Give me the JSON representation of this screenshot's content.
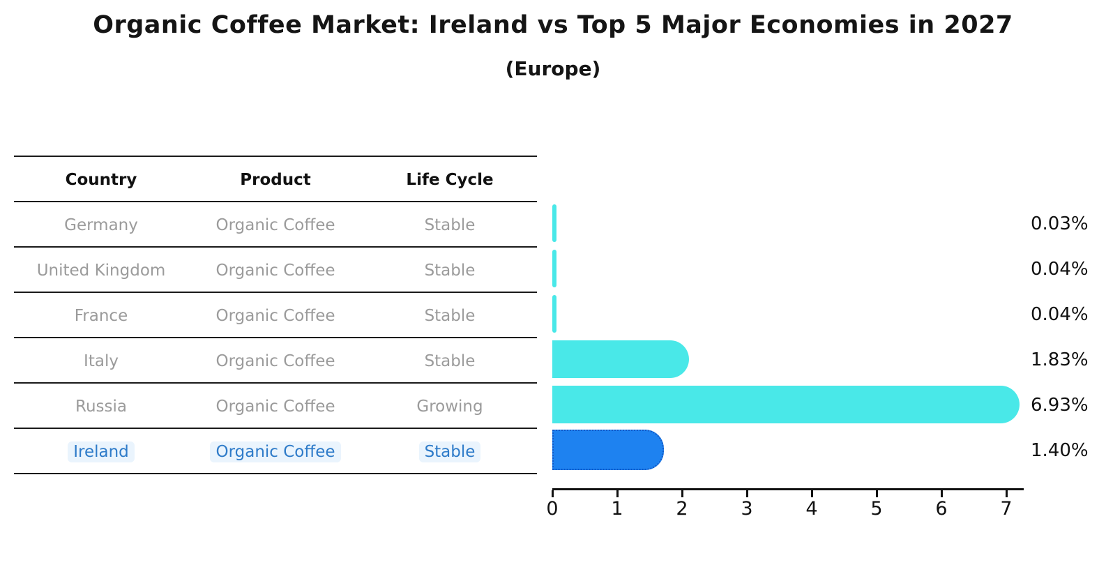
{
  "title": "Organic Coffee Market: Ireland vs Top 5 Major Economies in 2027",
  "subtitle": "(Europe)",
  "table": {
    "headers": [
      "Country",
      "Product",
      "Life Cycle"
    ],
    "rows": [
      {
        "country": "Germany",
        "product": "Organic Coffee",
        "life_cycle": "Stable",
        "highlighted": false
      },
      {
        "country": "United Kingdom",
        "product": "Organic Coffee",
        "life_cycle": "Stable",
        "highlighted": false
      },
      {
        "country": "France",
        "product": "Organic Coffee",
        "life_cycle": "Stable",
        "highlighted": false
      },
      {
        "country": "Italy",
        "product": "Organic Coffee",
        "life_cycle": "Stable",
        "highlighted": false
      },
      {
        "country": "Russia",
        "product": "Organic Coffee",
        "life_cycle": "Growing",
        "highlighted": false
      },
      {
        "country": "Ireland",
        "product": "Organic Coffee",
        "life_cycle": "Stable",
        "highlighted": true
      }
    ]
  },
  "chart_data": {
    "type": "bar",
    "orientation": "horizontal",
    "title": "Organic Coffee Market: Ireland vs Top 5 Major Economies in 2027",
    "subtitle": "(Europe)",
    "categories": [
      "Germany",
      "United Kingdom",
      "France",
      "Italy",
      "Russia",
      "Ireland"
    ],
    "values": [
      0.03,
      0.04,
      0.04,
      1.83,
      6.93,
      1.4
    ],
    "value_labels": [
      "0.03%",
      "0.04%",
      "0.04%",
      "1.83%",
      "6.93%",
      "1.40%"
    ],
    "xlabel": "",
    "ylabel": "",
    "xlim": [
      0,
      7.26
    ],
    "x_ticks": [
      0,
      1,
      2,
      3,
      4,
      5,
      6,
      7
    ],
    "grid": false,
    "legend": false,
    "highlight_index": 5,
    "bar_color": "#49e8e8",
    "highlight_bar_color": "#1e82f0",
    "highlight_text_color": "#2e7bc9",
    "value_unit": "%"
  }
}
